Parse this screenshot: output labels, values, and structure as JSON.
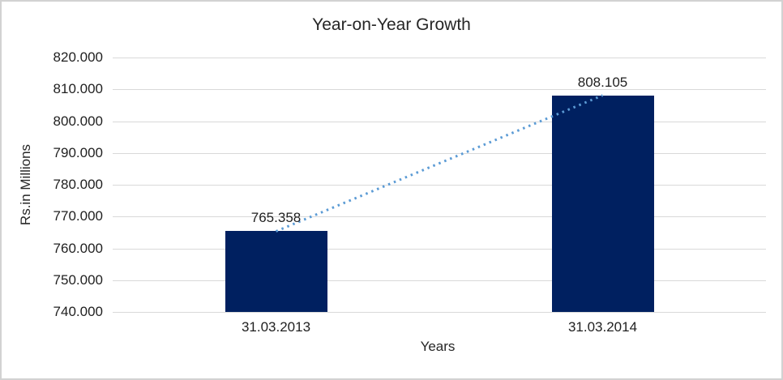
{
  "chart_data": {
    "type": "bar",
    "title": "Year-on-Year Growth",
    "xlabel": "Years",
    "ylabel": "Rs.in Millions",
    "categories": [
      "31.03.2013",
      "31.03.2014"
    ],
    "values": [
      765.358,
      808.105
    ],
    "data_labels": [
      "765.358",
      "808.105"
    ],
    "ylim": [
      740,
      820
    ],
    "ytick_step": 10,
    "ytick_labels": [
      "740.000",
      "750.000",
      "760.000",
      "770.000",
      "780.000",
      "790.000",
      "800.000",
      "810.000",
      "820.000"
    ],
    "grid": true,
    "legend": "none",
    "bar_color": "#002060",
    "gridline_color": "#D9D9D9",
    "axis_text_color": "#1f1f1f",
    "trendline": {
      "type": "linear",
      "style": "dotted",
      "color": "#5B9BD5"
    }
  }
}
